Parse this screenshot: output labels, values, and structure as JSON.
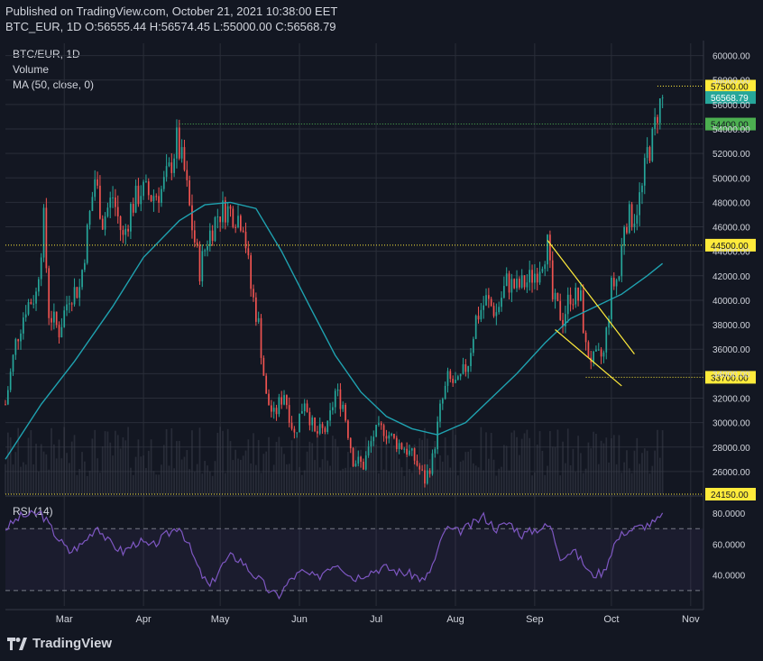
{
  "header": {
    "published": "Published on TradingView.com, October 21, 2021 10:38:00 EET",
    "symbol": "BTC_EUR, 1D",
    "ohlc": "O:56555.44 H:56574.45 L:55000.00 C:56568.79"
  },
  "legend": {
    "title": "BTC/EUR, 1D",
    "volume": "Volume",
    "ma": "MA (50, close, 0)",
    "rsi": "RSI (14)"
  },
  "brand": {
    "name": "TradingView",
    "logo_icon": "tradingview-logo-icon"
  },
  "colors": {
    "background": "#131722",
    "grid": "#2a2e39",
    "up": "#26a69a",
    "down": "#ef5350",
    "ma": "#1fa2b0",
    "rsi": "#7e57c2",
    "level_yellow": "#ffeb3b",
    "level_green": "#4caf50",
    "price_label": "#26a69a",
    "axis_text": "#d1d4dc"
  },
  "chart_data": [
    {
      "type": "candlestick",
      "title": "BTC/EUR, 1D",
      "ylim": [
        24150,
        61000
      ],
      "y_ticks": [
        "60000.00",
        "58000.00",
        "56000.00",
        "54000.00",
        "52000.00",
        "50000.00",
        "48000.00",
        "46000.00",
        "44000.00",
        "42000.00",
        "40000.00",
        "38000.00",
        "36000.00",
        "34000.00",
        "32000.00",
        "30000.00",
        "28000.00",
        "26000.00"
      ],
      "x_ticks": [
        "Mar",
        "Apr",
        "May",
        "Jun",
        "Jul",
        "Aug",
        "Sep",
        "Oct",
        "Nov"
      ],
      "x_tick_dates": [
        "2021-03-01",
        "2021-04-01",
        "2021-05-01",
        "2021-06-01",
        "2021-07-01",
        "2021-08-01",
        "2021-09-01",
        "2021-10-01",
        "2021-11-01"
      ],
      "x_range": [
        "2021-02-06",
        "2021-11-06"
      ],
      "last_close": 56568.79,
      "last_close_label": "56568.79",
      "close_series": [
        [
          "2021-02-06",
          31500
        ],
        [
          "2021-02-10",
          36500
        ],
        [
          "2021-02-14",
          39500
        ],
        [
          "2021-02-18",
          40500
        ],
        [
          "2021-02-21",
          46500
        ],
        [
          "2021-02-23",
          39000
        ],
        [
          "2021-02-27",
          37500
        ],
        [
          "2021-03-03",
          40500
        ],
        [
          "2021-03-07",
          41000
        ],
        [
          "2021-03-10",
          45500
        ],
        [
          "2021-03-13",
          50000
        ],
        [
          "2021-03-16",
          46500
        ],
        [
          "2021-03-20",
          48500
        ],
        [
          "2021-03-24",
          45000
        ],
        [
          "2021-03-27",
          47500
        ],
        [
          "2021-03-31",
          49000
        ],
        [
          "2021-04-04",
          48500
        ],
        [
          "2021-04-08",
          49000
        ],
        [
          "2021-04-11",
          50500
        ],
        [
          "2021-04-14",
          53000
        ],
        [
          "2021-04-17",
          50500
        ],
        [
          "2021-04-20",
          46000
        ],
        [
          "2021-04-23",
          42500
        ],
        [
          "2021-04-26",
          45000
        ],
        [
          "2021-04-30",
          47000
        ],
        [
          "2021-05-03",
          47500
        ],
        [
          "2021-05-07",
          47000
        ],
        [
          "2021-05-10",
          46500
        ],
        [
          "2021-05-13",
          41000
        ],
        [
          "2021-05-16",
          38000
        ],
        [
          "2021-05-19",
          32000
        ],
        [
          "2021-05-22",
          30500
        ],
        [
          "2021-05-26",
          32500
        ],
        [
          "2021-05-30",
          29000
        ],
        [
          "2021-06-03",
          32000
        ],
        [
          "2021-06-07",
          29000
        ],
        [
          "2021-06-12",
          29500
        ],
        [
          "2021-06-15",
          32500
        ],
        [
          "2021-06-18",
          31500
        ],
        [
          "2021-06-22",
          27000
        ],
        [
          "2021-06-26",
          26500
        ],
        [
          "2021-06-30",
          29000
        ],
        [
          "2021-07-04",
          29500
        ],
        [
          "2021-07-08",
          28500
        ],
        [
          "2021-07-12",
          28000
        ],
        [
          "2021-07-16",
          27000
        ],
        [
          "2021-07-20",
          25300
        ],
        [
          "2021-07-23",
          27000
        ],
        [
          "2021-07-26",
          31000
        ],
        [
          "2021-07-29",
          33500
        ],
        [
          "2021-08-02",
          33000
        ],
        [
          "2021-08-06",
          35000
        ],
        [
          "2021-08-09",
          38500
        ],
        [
          "2021-08-13",
          40000
        ],
        [
          "2021-08-17",
          39000
        ],
        [
          "2021-08-21",
          41500
        ],
        [
          "2021-08-25",
          41000
        ],
        [
          "2021-08-29",
          41500
        ],
        [
          "2021-09-02",
          42500
        ],
        [
          "2021-09-06",
          44500
        ],
        [
          "2021-09-08",
          40000
        ],
        [
          "2021-09-12",
          38500
        ],
        [
          "2021-09-15",
          40500
        ],
        [
          "2021-09-19",
          40000
        ],
        [
          "2021-09-21",
          36000
        ],
        [
          "2021-09-24",
          35000
        ],
        [
          "2021-09-28",
          35500
        ],
        [
          "2021-10-01",
          41000
        ],
        [
          "2021-10-04",
          42000
        ],
        [
          "2021-10-06",
          46500
        ],
        [
          "2021-10-10",
          47000
        ],
        [
          "2021-10-13",
          49000
        ],
        [
          "2021-10-15",
          52000
        ],
        [
          "2021-10-17",
          53000
        ],
        [
          "2021-10-19",
          55500
        ],
        [
          "2021-10-21",
          56568.79
        ]
      ],
      "ma50_series": [
        [
          "2021-02-06",
          27000
        ],
        [
          "2021-02-20",
          31500
        ],
        [
          "2021-03-05",
          35000
        ],
        [
          "2021-03-20",
          39500
        ],
        [
          "2021-04-01",
          43500
        ],
        [
          "2021-04-15",
          46500
        ],
        [
          "2021-04-25",
          47800
        ],
        [
          "2021-05-05",
          48000
        ],
        [
          "2021-05-15",
          47500
        ],
        [
          "2021-05-25",
          44000
        ],
        [
          "2021-06-05",
          39500
        ],
        [
          "2021-06-15",
          35500
        ],
        [
          "2021-06-25",
          32500
        ],
        [
          "2021-07-05",
          30500
        ],
        [
          "2021-07-15",
          29500
        ],
        [
          "2021-07-25",
          29000
        ],
        [
          "2021-08-05",
          30000
        ],
        [
          "2021-08-15",
          32000
        ],
        [
          "2021-08-25",
          34000
        ],
        [
          "2021-09-05",
          36500
        ],
        [
          "2021-09-15",
          38500
        ],
        [
          "2021-09-25",
          39500
        ],
        [
          "2021-10-05",
          40500
        ],
        [
          "2021-10-15",
          42000
        ],
        [
          "2021-10-21",
          43000
        ]
      ],
      "horizontal_levels": [
        {
          "value": 57500,
          "label": "57500.00",
          "color": "#ffeb3b",
          "from": "2021-10-19"
        },
        {
          "value": 54400,
          "label": "54400.00",
          "color": "#4caf50",
          "from": "2021-04-15"
        },
        {
          "value": 44500,
          "label": "44500.00",
          "color": "#ffeb3b",
          "from": "2021-02-06"
        },
        {
          "value": 33700,
          "label": "33700.00",
          "color": "#ffeb3b",
          "from": "2021-09-21"
        },
        {
          "value": 24150,
          "label": "24150.00",
          "color": "#ffeb3b",
          "from": "2021-02-06"
        }
      ],
      "trendlines": [
        {
          "from": [
            "2021-09-06",
            44900
          ],
          "to": [
            "2021-10-10",
            35600
          ],
          "color": "#ffeb3b"
        },
        {
          "from": [
            "2021-09-09",
            37600
          ],
          "to": [
            "2021-10-05",
            33000
          ],
          "color": "#ffeb3b"
        }
      ],
      "volume": "shown"
    },
    {
      "type": "line",
      "title": "RSI (14)",
      "ylim": [
        20,
        90
      ],
      "y_ticks": [
        "80.0000",
        "60.0000",
        "40.0000"
      ],
      "bands": [
        70,
        30
      ],
      "series": [
        [
          "2021-02-06",
          70
        ],
        [
          "2021-02-12",
          78
        ],
        [
          "2021-02-20",
          80
        ],
        [
          "2021-02-26",
          65
        ],
        [
          "2021-03-03",
          55
        ],
        [
          "2021-03-08",
          60
        ],
        [
          "2021-03-14",
          72
        ],
        [
          "2021-03-18",
          62
        ],
        [
          "2021-03-24",
          55
        ],
        [
          "2021-03-30",
          62
        ],
        [
          "2021-04-04",
          58
        ],
        [
          "2021-04-10",
          66
        ],
        [
          "2021-04-15",
          72
        ],
        [
          "2021-04-19",
          58
        ],
        [
          "2021-04-23",
          42
        ],
        [
          "2021-04-27",
          32
        ],
        [
          "2021-05-01",
          45
        ],
        [
          "2021-05-05",
          52
        ],
        [
          "2021-05-09",
          50
        ],
        [
          "2021-05-13",
          42
        ],
        [
          "2021-05-17",
          36
        ],
        [
          "2021-05-21",
          28
        ],
        [
          "2021-05-24",
          27
        ],
        [
          "2021-05-29",
          38
        ],
        [
          "2021-06-02",
          42
        ],
        [
          "2021-06-08",
          38
        ],
        [
          "2021-06-12",
          45
        ],
        [
          "2021-06-16",
          48
        ],
        [
          "2021-06-22",
          38
        ],
        [
          "2021-06-28",
          42
        ],
        [
          "2021-07-04",
          45
        ],
        [
          "2021-07-10",
          42
        ],
        [
          "2021-07-16",
          40
        ],
        [
          "2021-07-20",
          36
        ],
        [
          "2021-07-24",
          50
        ],
        [
          "2021-07-28",
          70
        ],
        [
          "2021-08-02",
          68
        ],
        [
          "2021-08-07",
          72
        ],
        [
          "2021-08-12",
          78
        ],
        [
          "2021-08-17",
          70
        ],
        [
          "2021-08-22",
          74
        ],
        [
          "2021-08-27",
          66
        ],
        [
          "2021-09-02",
          70
        ],
        [
          "2021-09-07",
          72
        ],
        [
          "2021-09-11",
          52
        ],
        [
          "2021-09-16",
          56
        ],
        [
          "2021-09-20",
          48
        ],
        [
          "2021-09-23",
          40
        ],
        [
          "2021-09-28",
          42
        ],
        [
          "2021-10-02",
          60
        ],
        [
          "2021-10-06",
          68
        ],
        [
          "2021-10-10",
          70
        ],
        [
          "2021-10-14",
          72
        ],
        [
          "2021-10-18",
          74
        ],
        [
          "2021-10-21",
          78
        ]
      ]
    }
  ]
}
